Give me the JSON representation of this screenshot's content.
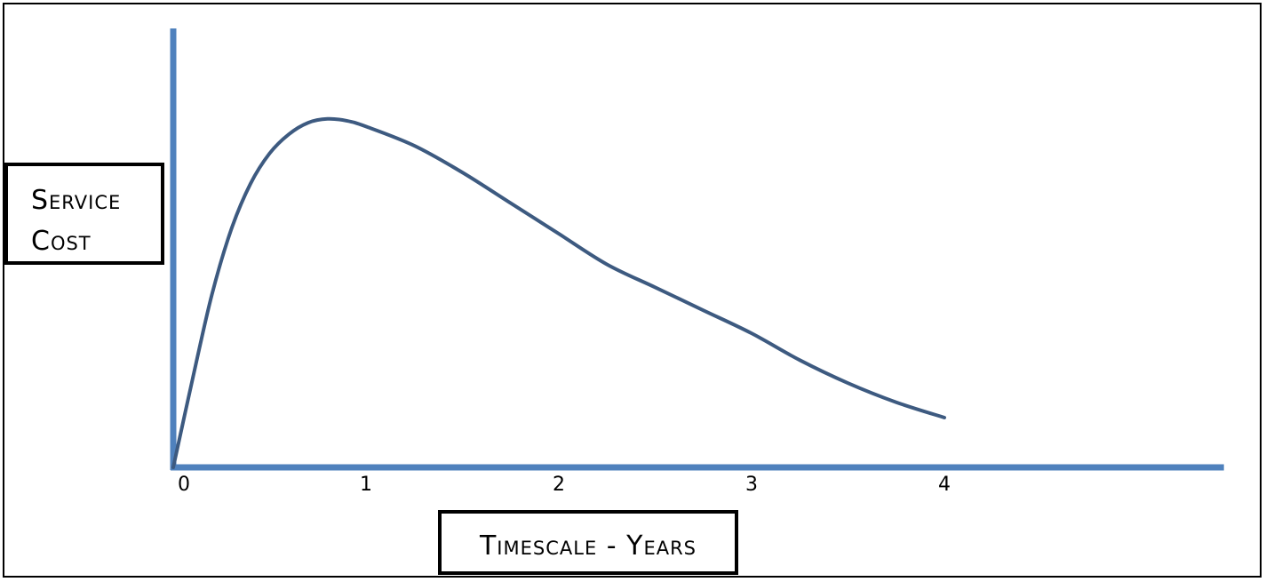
{
  "chart_data": {
    "type": "line",
    "title": "",
    "ylabel_lines": [
      "Service",
      "Cost"
    ],
    "xlabel": "Timescale - Years",
    "x_ticks": [
      0,
      1,
      2,
      3,
      4
    ],
    "xlim": [
      0,
      5.45
    ],
    "ylim": [
      0,
      1.0
    ],
    "y_ticks_shown": false,
    "grid": false,
    "legend": "none",
    "line_color": "#3D5A80",
    "axis_color": "#4F81BD",
    "series": [
      {
        "x": [
          0,
          0.1,
          0.2,
          0.3,
          0.4,
          0.5,
          0.6,
          0.7,
          0.8,
          0.9,
          1.0,
          1.25,
          1.5,
          1.75,
          2.0,
          2.25,
          2.5,
          2.75,
          3.0,
          3.25,
          3.5,
          3.75,
          4.0
        ],
        "values": [
          0.0,
          0.23,
          0.45,
          0.62,
          0.74,
          0.82,
          0.87,
          0.9,
          0.91,
          0.905,
          0.89,
          0.84,
          0.77,
          0.69,
          0.61,
          0.53,
          0.47,
          0.41,
          0.35,
          0.28,
          0.22,
          0.17,
          0.13
        ]
      }
    ]
  }
}
